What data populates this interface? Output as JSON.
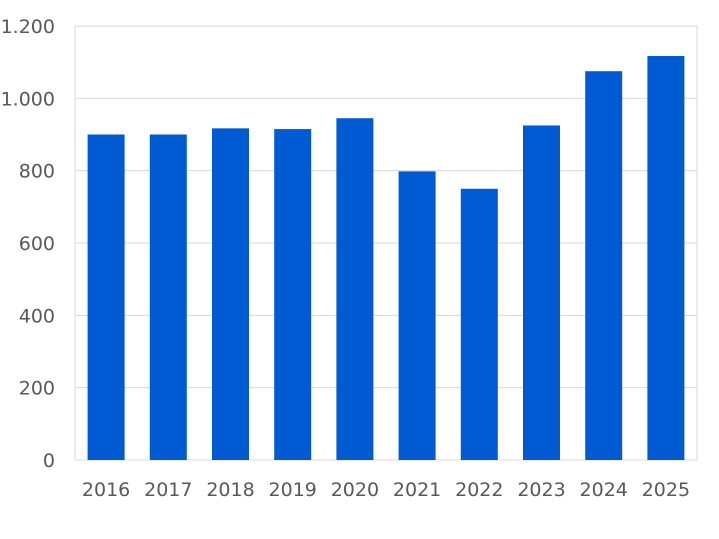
{
  "chart_data": {
    "type": "bar",
    "categories": [
      "2016",
      "2017",
      "2018",
      "2019",
      "2020",
      "2021",
      "2022",
      "2023",
      "2024",
      "2025"
    ],
    "values": [
      900,
      900,
      917,
      915,
      945,
      798,
      750,
      925,
      1075,
      1117
    ],
    "title": "",
    "xlabel": "",
    "ylabel": "",
    "ylim": [
      0,
      1200
    ],
    "yticks": [
      0,
      200,
      400,
      600,
      800,
      1000,
      1200
    ],
    "ytick_labels": [
      "0",
      "200",
      "400",
      "600",
      "800",
      "1.000",
      "1.200"
    ],
    "grid": true,
    "legend": "none",
    "bar_color": "#005bd3"
  }
}
